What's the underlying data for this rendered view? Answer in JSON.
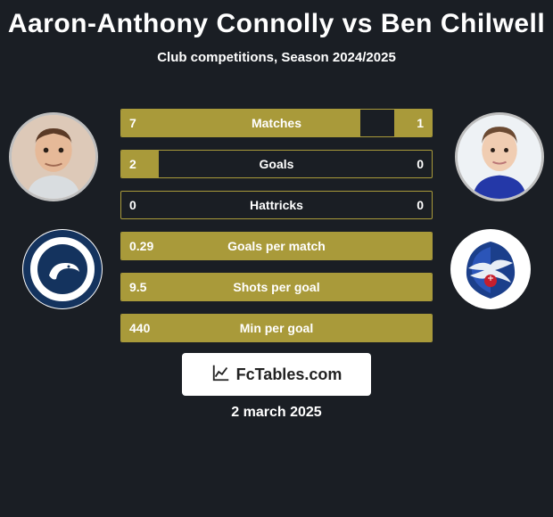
{
  "title": "Aaron-Anthony Connolly vs Ben Chilwell",
  "subtitle": "Club competitions, Season 2024/2025",
  "watermark_text": "FcTables.com",
  "date": "2 march 2025",
  "colors": {
    "background": "#1a1e24",
    "bar_fill": "#a99a3a",
    "bar_border": "#a99a3a",
    "text": "#ffffff"
  },
  "player_left": {
    "name": "Aaron-Anthony Connolly",
    "club": "Millwall"
  },
  "player_right": {
    "name": "Ben Chilwell",
    "club": "Crystal Palace"
  },
  "stats": [
    {
      "label": "Matches",
      "left_value": "7",
      "right_value": "1",
      "left_pct": 77,
      "right_pct": 12
    },
    {
      "label": "Goals",
      "left_value": "2",
      "right_value": "0",
      "left_pct": 12,
      "right_pct": 0
    },
    {
      "label": "Hattricks",
      "left_value": "0",
      "right_value": "0",
      "left_pct": 0,
      "right_pct": 0
    },
    {
      "label": "Goals per match",
      "left_value": "0.29",
      "right_value": "",
      "left_pct": 100,
      "right_pct": 0
    },
    {
      "label": "Shots per goal",
      "left_value": "9.5",
      "right_value": "",
      "left_pct": 100,
      "right_pct": 0
    },
    {
      "label": "Min per goal",
      "left_value": "440",
      "right_value": "",
      "left_pct": 100,
      "right_pct": 0
    }
  ]
}
